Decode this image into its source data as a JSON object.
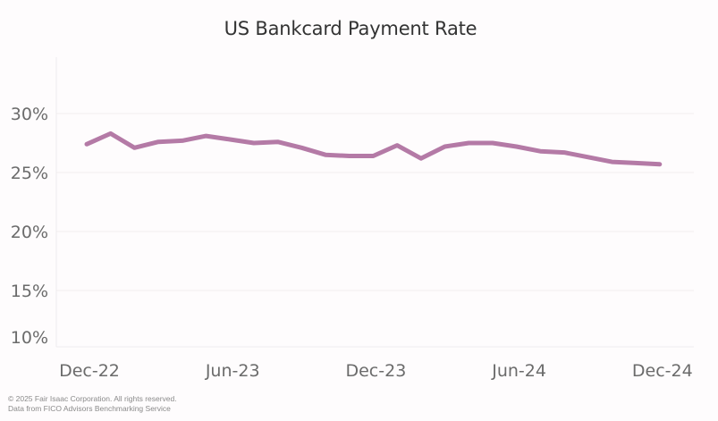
{
  "chart_data": {
    "type": "line",
    "title": "US Bankcard Payment Rate",
    "xlabel": "",
    "ylabel": "",
    "ylim": [
      10,
      35
    ],
    "grid": true,
    "legend": null,
    "y_ticks": [
      "30%",
      "25%",
      "20%",
      "15%",
      "10%"
    ],
    "y_tick_values": [
      30,
      25,
      20,
      15,
      10
    ],
    "x_tick_labels": [
      "Dec-22",
      "Jun-23",
      "Dec-23",
      "Jun-24",
      "Dec-24"
    ],
    "x_tick_indices": [
      0,
      6,
      12,
      18,
      24
    ],
    "line_color": "#b47aa6",
    "x": [
      "Dec-22",
      "Jan-23",
      "Feb-23",
      "Mar-23",
      "Apr-23",
      "May-23",
      "Jun-23",
      "Jul-23",
      "Aug-23",
      "Sep-23",
      "Oct-23",
      "Nov-23",
      "Dec-23",
      "Jan-24",
      "Feb-24",
      "Mar-24",
      "Apr-24",
      "May-24",
      "Jun-24",
      "Jul-24",
      "Aug-24",
      "Sep-24",
      "Oct-24",
      "Nov-24",
      "Dec-24"
    ],
    "series": [
      {
        "name": "US Bankcard Payment Rate",
        "values": [
          27.4,
          28.3,
          27.1,
          27.6,
          27.7,
          28.1,
          27.8,
          27.5,
          27.6,
          27.1,
          26.5,
          26.4,
          26.4,
          27.3,
          26.2,
          27.2,
          27.5,
          27.5,
          27.2,
          26.8,
          26.7,
          26.3,
          25.9,
          25.8,
          25.7
        ]
      }
    ]
  },
  "footer": {
    "copyright": "© 2025 Fair Isaac Corporation. All rights reserved.",
    "source": "Data from FICO Advisors Benchmarking Service"
  }
}
